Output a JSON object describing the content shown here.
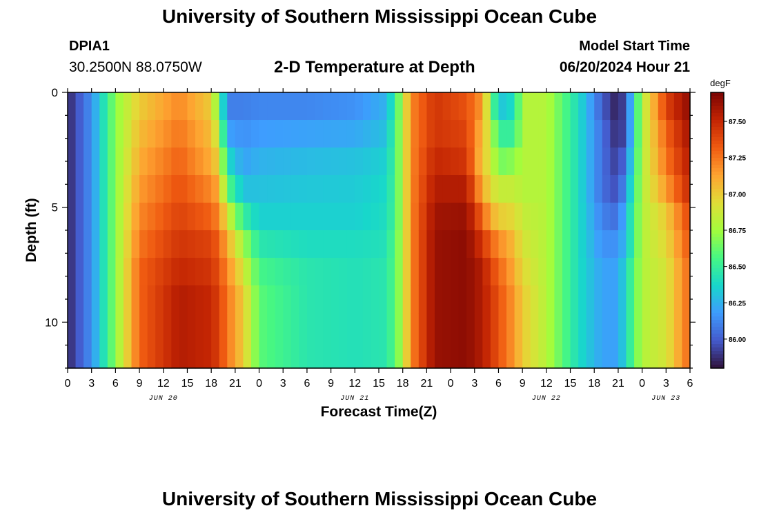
{
  "header": {
    "title": "University of Southern Mississippi Ocean Cube",
    "station": "DPIA1",
    "coords": "30.2500N  88.0750W",
    "plot_title": "2-D Temperature at Depth",
    "model_start_label": "Model Start Time",
    "model_start_value": "06/20/2024 Hour 21"
  },
  "footer": {
    "title": "University of Southern Mississippi Ocean Cube"
  },
  "colors": {
    "background": "#ffffff",
    "text": "#000000"
  },
  "chart_data": {
    "type": "heatmap",
    "title": "2-D Temperature at Depth",
    "xlabel": "Forecast Time(Z)",
    "ylabel": "Depth (ft)",
    "x_range_hours": [
      0,
      78
    ],
    "ylim": [
      0,
      12
    ],
    "y_ticks": [
      0,
      5,
      10
    ],
    "x_tick_labels": [
      "0",
      "3",
      "6",
      "9",
      "12",
      "15",
      "18",
      "21",
      "0",
      "3",
      "6",
      "9",
      "12",
      "15",
      "18",
      "21",
      "0",
      "3",
      "6",
      "9",
      "12",
      "15",
      "18",
      "21",
      "0",
      "3",
      "6"
    ],
    "date_labels": [
      {
        "label": "JUN 20",
        "hour": 12
      },
      {
        "label": "JUN 21",
        "hour": 36
      },
      {
        "label": "JUN 22",
        "hour": 60
      },
      {
        "label": "JUN 23",
        "hour": 75
      }
    ],
    "colorbar": {
      "unit": "degF",
      "min": 85.8,
      "max": 87.7,
      "ticks": [
        "86.00",
        "86.25",
        "86.50",
        "86.75",
        "87.00",
        "87.25",
        "87.50"
      ],
      "tick_values": [
        86.0,
        86.25,
        86.5,
        86.75,
        87.0,
        87.25,
        87.5
      ]
    },
    "depth_levels_ft": [
      0,
      1.33,
      2.67,
      4.0,
      5.33,
      6.67,
      8.0,
      9.33,
      10.67,
      12.0
    ],
    "temperature_keyframes": [
      {
        "hour": 0,
        "values": [
          85.85,
          85.85,
          85.85,
          85.85,
          85.85,
          85.85,
          85.85,
          85.85,
          85.85,
          85.85
        ]
      },
      {
        "hour": 3,
        "values": [
          86.15,
          86.15,
          86.15,
          86.15,
          86.15,
          86.15,
          86.15,
          86.15,
          86.15,
          86.15
        ]
      },
      {
        "hour": 6,
        "values": [
          86.7,
          86.7,
          86.7,
          86.7,
          86.7,
          86.7,
          86.7,
          86.7,
          86.7,
          86.7
        ]
      },
      {
        "hour": 9,
        "values": [
          87.0,
          87.05,
          87.1,
          87.15,
          87.2,
          87.25,
          87.3,
          87.3,
          87.3,
          87.3
        ]
      },
      {
        "hour": 14,
        "values": [
          87.2,
          87.25,
          87.3,
          87.35,
          87.4,
          87.45,
          87.5,
          87.55,
          87.55,
          87.55
        ]
      },
      {
        "hour": 18,
        "values": [
          87.0,
          87.05,
          87.1,
          87.2,
          87.3,
          87.4,
          87.45,
          87.5,
          87.5,
          87.5
        ]
      },
      {
        "hour": 19,
        "values": [
          86.6,
          86.8,
          86.95,
          87.1,
          87.2,
          87.3,
          87.35,
          87.4,
          87.4,
          87.4
        ]
      },
      {
        "hour": 20,
        "values": [
          86.1,
          86.2,
          86.4,
          86.6,
          86.9,
          87.1,
          87.2,
          87.25,
          87.25,
          87.25
        ]
      },
      {
        "hour": 22,
        "values": [
          86.1,
          86.15,
          86.2,
          86.3,
          86.5,
          86.75,
          86.9,
          87.0,
          87.0,
          87.0
        ]
      },
      {
        "hour": 24,
        "values": [
          86.12,
          86.18,
          86.25,
          86.3,
          86.35,
          86.45,
          86.55,
          86.6,
          86.6,
          86.6
        ]
      },
      {
        "hour": 30,
        "values": [
          86.12,
          86.2,
          86.28,
          86.32,
          86.35,
          86.4,
          86.45,
          86.45,
          86.45,
          86.45
        ]
      },
      {
        "hour": 36,
        "values": [
          86.15,
          86.22,
          86.3,
          86.33,
          86.35,
          86.4,
          86.42,
          86.42,
          86.42,
          86.42
        ]
      },
      {
        "hour": 40,
        "values": [
          86.25,
          86.3,
          86.35,
          86.38,
          86.4,
          86.42,
          86.45,
          86.45,
          86.45,
          86.45
        ]
      },
      {
        "hour": 41,
        "values": [
          86.5,
          86.55,
          86.55,
          86.55,
          86.55,
          86.6,
          86.6,
          86.6,
          86.6,
          86.6
        ]
      },
      {
        "hour": 42,
        "values": [
          86.8,
          86.8,
          86.8,
          86.8,
          86.8,
          86.8,
          86.8,
          86.8,
          86.8,
          86.8
        ]
      },
      {
        "hour": 43,
        "values": [
          87.2,
          87.2,
          87.2,
          87.2,
          87.2,
          87.2,
          87.2,
          87.2,
          87.2,
          87.2
        ]
      },
      {
        "hour": 46,
        "values": [
          87.45,
          87.45,
          87.5,
          87.55,
          87.6,
          87.62,
          87.62,
          87.62,
          87.62,
          87.62
        ]
      },
      {
        "hour": 50,
        "values": [
          87.35,
          87.4,
          87.45,
          87.55,
          87.62,
          87.65,
          87.65,
          87.65,
          87.65,
          87.65
        ]
      },
      {
        "hour": 52,
        "values": [
          87.15,
          87.05,
          87.0,
          87.1,
          87.3,
          87.45,
          87.55,
          87.55,
          87.55,
          87.55
        ]
      },
      {
        "hour": 53,
        "values": [
          86.7,
          86.85,
          86.9,
          86.95,
          87.1,
          87.3,
          87.4,
          87.45,
          87.45,
          87.45
        ]
      },
      {
        "hour": 54,
        "values": [
          86.3,
          86.5,
          86.65,
          86.85,
          87.0,
          87.2,
          87.3,
          87.35,
          87.35,
          87.35
        ]
      },
      {
        "hour": 56,
        "values": [
          86.4,
          86.5,
          86.7,
          86.85,
          86.95,
          87.05,
          87.1,
          87.15,
          87.15,
          87.15
        ]
      },
      {
        "hour": 57,
        "values": [
          86.8,
          86.8,
          86.8,
          86.8,
          86.85,
          86.9,
          86.95,
          87.0,
          87.0,
          87.0
        ]
      },
      {
        "hour": 60,
        "values": [
          86.8,
          86.8,
          86.8,
          86.8,
          86.8,
          86.8,
          86.8,
          86.8,
          86.8,
          86.8
        ]
      },
      {
        "hour": 64,
        "values": [
          86.4,
          86.4,
          86.4,
          86.4,
          86.4,
          86.4,
          86.4,
          86.4,
          86.4,
          86.4
        ]
      },
      {
        "hour": 67,
        "values": [
          86.0,
          86.05,
          86.05,
          86.05,
          86.1,
          86.15,
          86.2,
          86.2,
          86.2,
          86.2
        ]
      },
      {
        "hour": 69,
        "values": [
          85.82,
          85.85,
          85.9,
          85.95,
          86.05,
          86.15,
          86.2,
          86.2,
          86.2,
          86.2
        ]
      },
      {
        "hour": 70,
        "values": [
          86.0,
          86.0,
          86.1,
          86.2,
          86.3,
          86.3,
          86.4,
          86.4,
          86.4,
          86.4
        ]
      },
      {
        "hour": 72,
        "values": [
          86.8,
          86.8,
          86.8,
          86.8,
          86.8,
          86.8,
          86.8,
          86.8,
          86.8,
          86.8
        ]
      },
      {
        "hour": 75,
        "values": [
          87.4,
          87.3,
          87.25,
          87.15,
          87.0,
          86.95,
          86.9,
          86.9,
          86.9,
          86.9
        ]
      },
      {
        "hour": 78,
        "values": [
          87.65,
          87.6,
          87.55,
          87.5,
          87.4,
          87.35,
          87.3,
          87.3,
          87.3,
          87.3
        ]
      }
    ]
  }
}
